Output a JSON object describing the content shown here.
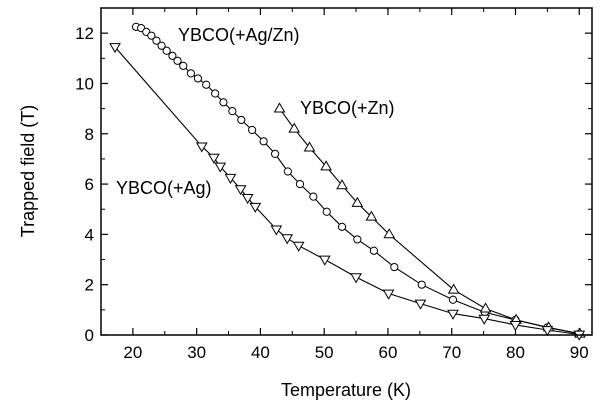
{
  "chart_data": {
    "type": "line",
    "title": "",
    "xlabel": "Temperature (K)",
    "ylabel": "Trapped field (T)",
    "xlim": [
      15,
      92
    ],
    "ylim": [
      0,
      13
    ],
    "xticks": [
      20,
      30,
      40,
      50,
      60,
      70,
      80,
      90
    ],
    "yticks": [
      0,
      2,
      4,
      6,
      8,
      10,
      12
    ],
    "grid": false,
    "legend": "none",
    "series": [
      {
        "name": "YBCO(+Ag/Zn)",
        "marker": "circle",
        "x": [
          20.5,
          21.3,
          22.1,
          22.9,
          23.7,
          24.5,
          25.3,
          26.2,
          27.0,
          27.9,
          29.1,
          30.2,
          31.5,
          32.9,
          34.2,
          35.6,
          37.0,
          38.7,
          40.5,
          42.3,
          44.3,
          46.2,
          48.3,
          50.4,
          52.8,
          55.2,
          57.8,
          61.0,
          65.3,
          70.2,
          75.2,
          80.0,
          85.0,
          90.0
        ],
        "y": [
          12.25,
          12.2,
          12.05,
          11.9,
          11.7,
          11.5,
          11.3,
          11.1,
          10.9,
          10.7,
          10.4,
          10.2,
          9.95,
          9.6,
          9.25,
          8.9,
          8.55,
          8.15,
          7.7,
          7.2,
          6.5,
          6.0,
          5.5,
          4.9,
          4.3,
          3.8,
          3.35,
          2.7,
          2.0,
          1.4,
          0.9,
          0.6,
          0.3,
          0.05
        ]
      },
      {
        "name": "YBCO(+Zn)",
        "marker": "triangle-up",
        "x": [
          43.0,
          45.3,
          47.7,
          50.3,
          52.8,
          55.2,
          57.4,
          60.2,
          70.3,
          75.3,
          80.1,
          85.2,
          90.1
        ],
        "y": [
          9.0,
          8.2,
          7.45,
          6.7,
          5.95,
          5.25,
          4.7,
          4.0,
          1.8,
          1.05,
          0.6,
          0.3,
          0.05
        ]
      },
      {
        "name": "YBCO(+Ag)",
        "marker": "triangle-down",
        "x": [
          17.2,
          30.8,
          32.7,
          33.7,
          35.3,
          36.9,
          38.0,
          39.2,
          42.5,
          44.2,
          46.0,
          50.1,
          55.0,
          60.1,
          65.1,
          70.2,
          75.1,
          80.0,
          85.0,
          90.0
        ],
        "y": [
          11.45,
          7.5,
          7.05,
          6.7,
          6.25,
          5.8,
          5.45,
          5.1,
          4.2,
          3.85,
          3.55,
          3.0,
          2.3,
          1.65,
          1.25,
          0.85,
          0.65,
          0.4,
          0.2,
          0.02
        ]
      }
    ]
  }
}
